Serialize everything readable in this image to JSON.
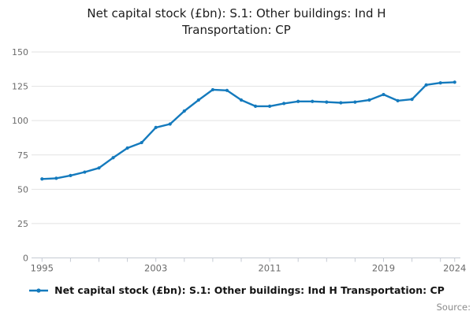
{
  "title_lines": [
    "Net capital stock (£bn): S.1: Other buildings: Ind H",
    "Transportation: CP"
  ],
  "legend": {
    "label": "Net capital stock (£bn): S.1: Other buildings: Ind H Transportation: CP"
  },
  "source_label": "Source:",
  "colors": {
    "line": "#147abd",
    "grid": "#e2e2e2",
    "axis": "#c5cad3",
    "tick_text": "#6b6b6b",
    "title_text": "#1c1c1c",
    "legend_text": "#141414",
    "source_text": "#8a8a8a"
  },
  "chart_data": {
    "type": "line",
    "title": "Net capital stock (£bn): S.1: Other buildings: Ind H Transportation: CP",
    "xlabel": "",
    "ylabel": "",
    "grid": true,
    "legend_position": "bottom",
    "ylim": [
      0,
      150
    ],
    "yticks": [
      0,
      25,
      50,
      75,
      100,
      125,
      150
    ],
    "xtick_years": [
      1995,
      1997,
      1999,
      2001,
      2003,
      2005,
      2007,
      2009,
      2011,
      2013,
      2015,
      2017,
      2019,
      2021,
      2023,
      2024
    ],
    "xtick_labels": [
      {
        "year": 1995,
        "label": "1995"
      },
      {
        "year": 2003,
        "label": "2003"
      },
      {
        "year": 2011,
        "label": "2011"
      },
      {
        "year": 2019,
        "label": "2019"
      },
      {
        "year": 2024,
        "label": "2024"
      }
    ],
    "x": [
      1995,
      1996,
      1997,
      1998,
      1999,
      2000,
      2001,
      2002,
      2003,
      2004,
      2005,
      2006,
      2007,
      2008,
      2009,
      2010,
      2011,
      2012,
      2013,
      2014,
      2015,
      2016,
      2017,
      2018,
      2019,
      2020,
      2021,
      2022,
      2023,
      2024
    ],
    "series": [
      {
        "name": "Net capital stock (£bn): S.1: Other buildings: Ind H Transportation: CP",
        "values": [
          57.5,
          58,
          60,
          62.5,
          65.5,
          73,
          80,
          84,
          95,
          97.5,
          107,
          115,
          122.5,
          122,
          115,
          110.5,
          110.5,
          112.5,
          114,
          114,
          113.5,
          113,
          113.5,
          115,
          119,
          114.5,
          115.5,
          126,
          127.5,
          128
        ]
      }
    ]
  }
}
